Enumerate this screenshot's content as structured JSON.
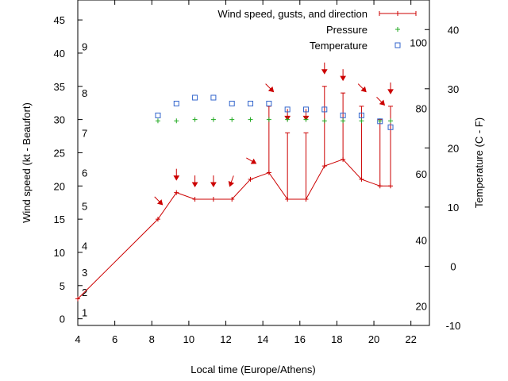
{
  "chart_data": {
    "type": "line",
    "xlabel": "Local time (Europe/Athens)",
    "ylabel_left": "Wind speed (kt - Beaufort)",
    "ylabel_right": "Temperature (C - F)",
    "x_range": [
      4,
      23
    ],
    "x_ticks": [
      4,
      6,
      8,
      10,
      12,
      14,
      16,
      18,
      20,
      22
    ],
    "y_left_range": [
      -1,
      48
    ],
    "y_left_ticks": [
      0,
      5,
      10,
      15,
      20,
      25,
      30,
      35,
      40,
      45
    ],
    "y_right_range": [
      -10,
      45
    ],
    "y_right_ticks": [
      -10,
      0,
      10,
      20,
      30,
      40
    ],
    "beaufort_labels": [
      {
        "label": "1",
        "kt": 1
      },
      {
        "label": "2",
        "kt": 4
      },
      {
        "label": "3",
        "kt": 7
      },
      {
        "label": "4",
        "kt": 11
      },
      {
        "label": "5",
        "kt": 17
      },
      {
        "label": "6",
        "kt": 22
      },
      {
        "label": "7",
        "kt": 28
      },
      {
        "label": "8",
        "kt": 34
      },
      {
        "label": "9",
        "kt": 41
      }
    ],
    "fahrenheit_labels": [
      {
        "label": "20",
        "c": -6.7
      },
      {
        "label": "40",
        "c": 4.4
      },
      {
        "label": "60",
        "c": 15.6
      },
      {
        "label": "80",
        "c": 26.7
      },
      {
        "label": "100",
        "c": 37.8
      }
    ],
    "grid": false,
    "legend_position": "top-right",
    "legend": {
      "wind": "Wind speed, gusts, and direction",
      "pressure": "Pressure",
      "temperature": "Temperature"
    },
    "colors": {
      "wind": "#cc0000",
      "pressure": "#22aa22",
      "temperature": "#3366cc"
    },
    "series": {
      "wind": {
        "x": [
          4.0,
          8.33,
          9.33,
          10.33,
          11.33,
          12.33,
          13.33,
          14.33,
          15.33,
          16.33,
          17.33,
          18.33,
          19.33,
          20.33,
          20.9
        ],
        "speed": [
          3,
          15,
          19,
          18,
          18,
          18,
          21,
          22,
          18,
          18,
          23,
          24,
          21,
          20,
          20
        ],
        "gust": [
          null,
          null,
          null,
          null,
          null,
          null,
          null,
          32,
          28,
          28,
          35,
          34,
          32,
          30,
          32
        ],
        "direction_deg": [
          null,
          315,
          0,
          0,
          0,
          20,
          300,
          315,
          0,
          0,
          0,
          0,
          315,
          315,
          0
        ]
      },
      "pressure": {
        "x": [
          8.33,
          9.33,
          10.33,
          11.33,
          12.33,
          13.33,
          14.33,
          15.33,
          16.33,
          17.33,
          18.33,
          19.33,
          20.33,
          20.9
        ],
        "y": [
          29.8,
          29.8,
          30.0,
          30.0,
          30.0,
          30.0,
          30.0,
          30.0,
          30.0,
          29.8,
          29.8,
          29.8,
          29.8,
          29.8
        ]
      },
      "temperature": {
        "x": [
          8.33,
          9.33,
          10.33,
          11.33,
          12.33,
          13.33,
          14.33,
          15.33,
          16.33,
          17.33,
          18.33,
          19.33,
          20.33,
          20.9
        ],
        "y": [
          25.5,
          27.5,
          28.5,
          28.5,
          27.5,
          27.5,
          27.5,
          26.5,
          26.5,
          26.5,
          25.5,
          25.5,
          24.5,
          23.5
        ]
      }
    }
  }
}
